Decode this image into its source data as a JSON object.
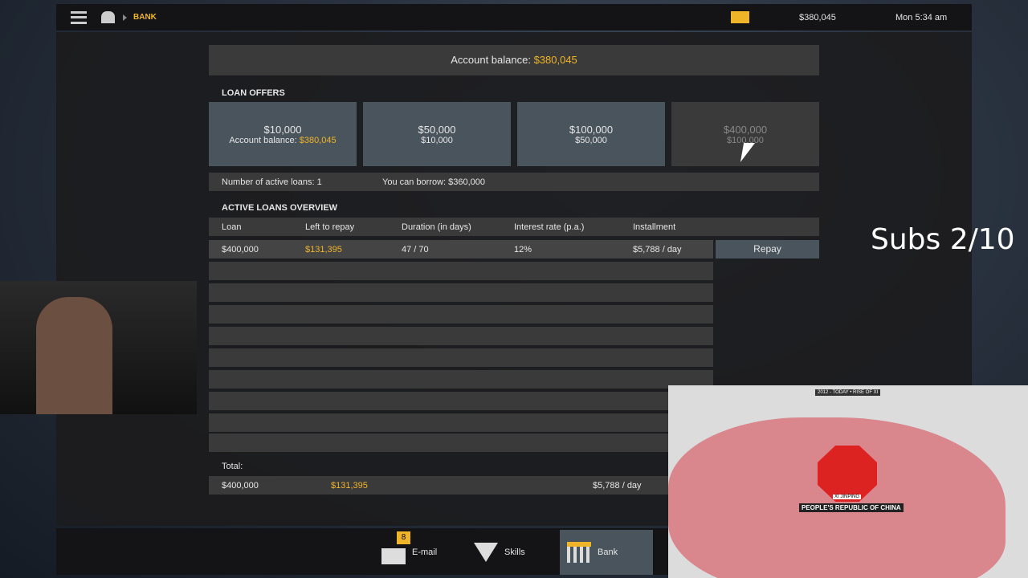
{
  "topbar": {
    "breadcrumb": "BANK",
    "balance": "$380,045",
    "clock": "Mon 5:34 am"
  },
  "header": {
    "label": "Account balance:",
    "value": "$380,045"
  },
  "offers": {
    "title": "LOAN OFFERS",
    "items": [
      {
        "amount": "$10,000",
        "sub_label": "Account balance:",
        "sub_value": "$380,045",
        "enabled": true
      },
      {
        "amount": "$50,000",
        "sub_value": "$10,000",
        "enabled": true
      },
      {
        "amount": "$100,000",
        "sub_value": "$50,000",
        "enabled": true
      },
      {
        "amount": "$400,000",
        "sub_value": "$100,000",
        "enabled": false
      }
    ]
  },
  "info": {
    "active_loans": "Number of active loans: 1",
    "can_borrow": "You can borrow: $360,000"
  },
  "overview": {
    "title": "ACTIVE LOANS OVERVIEW",
    "columns": [
      "Loan",
      "Left to repay",
      "Duration (in days)",
      "Interest rate (p.a.)",
      "Installment"
    ],
    "rows": [
      {
        "loan": "$400,000",
        "left": "$131,395",
        "duration": "47 / 70",
        "rate": "12%",
        "installment": "$5,788 / day",
        "action": "Repay"
      }
    ]
  },
  "total": {
    "label": "Total:",
    "loan": "$400,000",
    "left": "$131,395",
    "installment": "$5,788 / day"
  },
  "nav": {
    "email": "E-mail",
    "email_badge": "8",
    "skills": "Skills",
    "bank": "Bank"
  },
  "overlay": {
    "subs": "Subs 2/10",
    "map_header": "2012 - TODAY • RISE OF XI",
    "map_name": "XI JINPING",
    "map_country": "PEOPLE'S REPUBLIC OF CHINA"
  },
  "colors": {
    "accent": "#f0b429"
  }
}
